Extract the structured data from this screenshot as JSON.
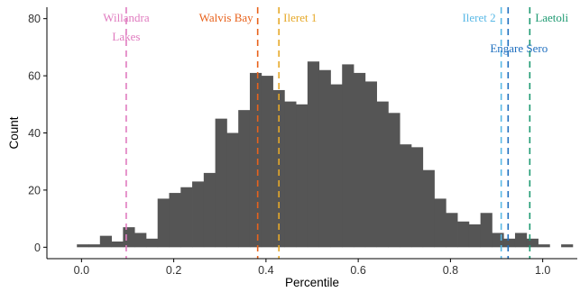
{
  "chart_data": {
    "type": "bar",
    "title": "",
    "xlabel": "Percentile",
    "ylabel": "Count",
    "xlim": [
      -0.075,
      1.075
    ],
    "ylim": [
      -4,
      84
    ],
    "xticks": [
      "0.0",
      "0.2",
      "0.4",
      "0.6",
      "0.8",
      "1.0"
    ],
    "yticks": [
      "0",
      "20",
      "40",
      "60",
      "80"
    ],
    "grid": false,
    "bar_color": "#555555",
    "bins": {
      "start": -0.01,
      "width": 0.025,
      "counts": [
        1,
        1,
        4,
        2,
        7,
        5,
        3,
        17,
        19,
        21,
        23,
        26,
        45,
        40,
        48,
        61,
        60,
        55,
        51,
        50,
        65,
        62,
        57,
        64,
        61,
        58,
        51,
        47,
        36,
        35,
        27,
        17,
        12,
        9,
        8,
        12,
        5,
        3,
        5,
        3,
        1,
        0,
        1,
        0,
        1,
        1,
        1
      ]
    },
    "annotations": [
      {
        "label": [
          "Willandra",
          "Lakes"
        ],
        "x": 0.097,
        "color": "#e07bbf"
      },
      {
        "label": [
          "Walvis Bay"
        ],
        "x": 0.382,
        "color": "#e8621c"
      },
      {
        "label": [
          "Ileret 1"
        ],
        "x": 0.428,
        "color": "#e6a92a"
      },
      {
        "label": [
          "Ileret 2"
        ],
        "x": 0.91,
        "color": "#5ab9e6"
      },
      {
        "label": [
          "Engare Sero"
        ],
        "x": 0.925,
        "color": "#1f6fbf"
      },
      {
        "label": [
          "Laetoli"
        ],
        "x": 0.972,
        "color": "#1e9a72"
      }
    ]
  }
}
